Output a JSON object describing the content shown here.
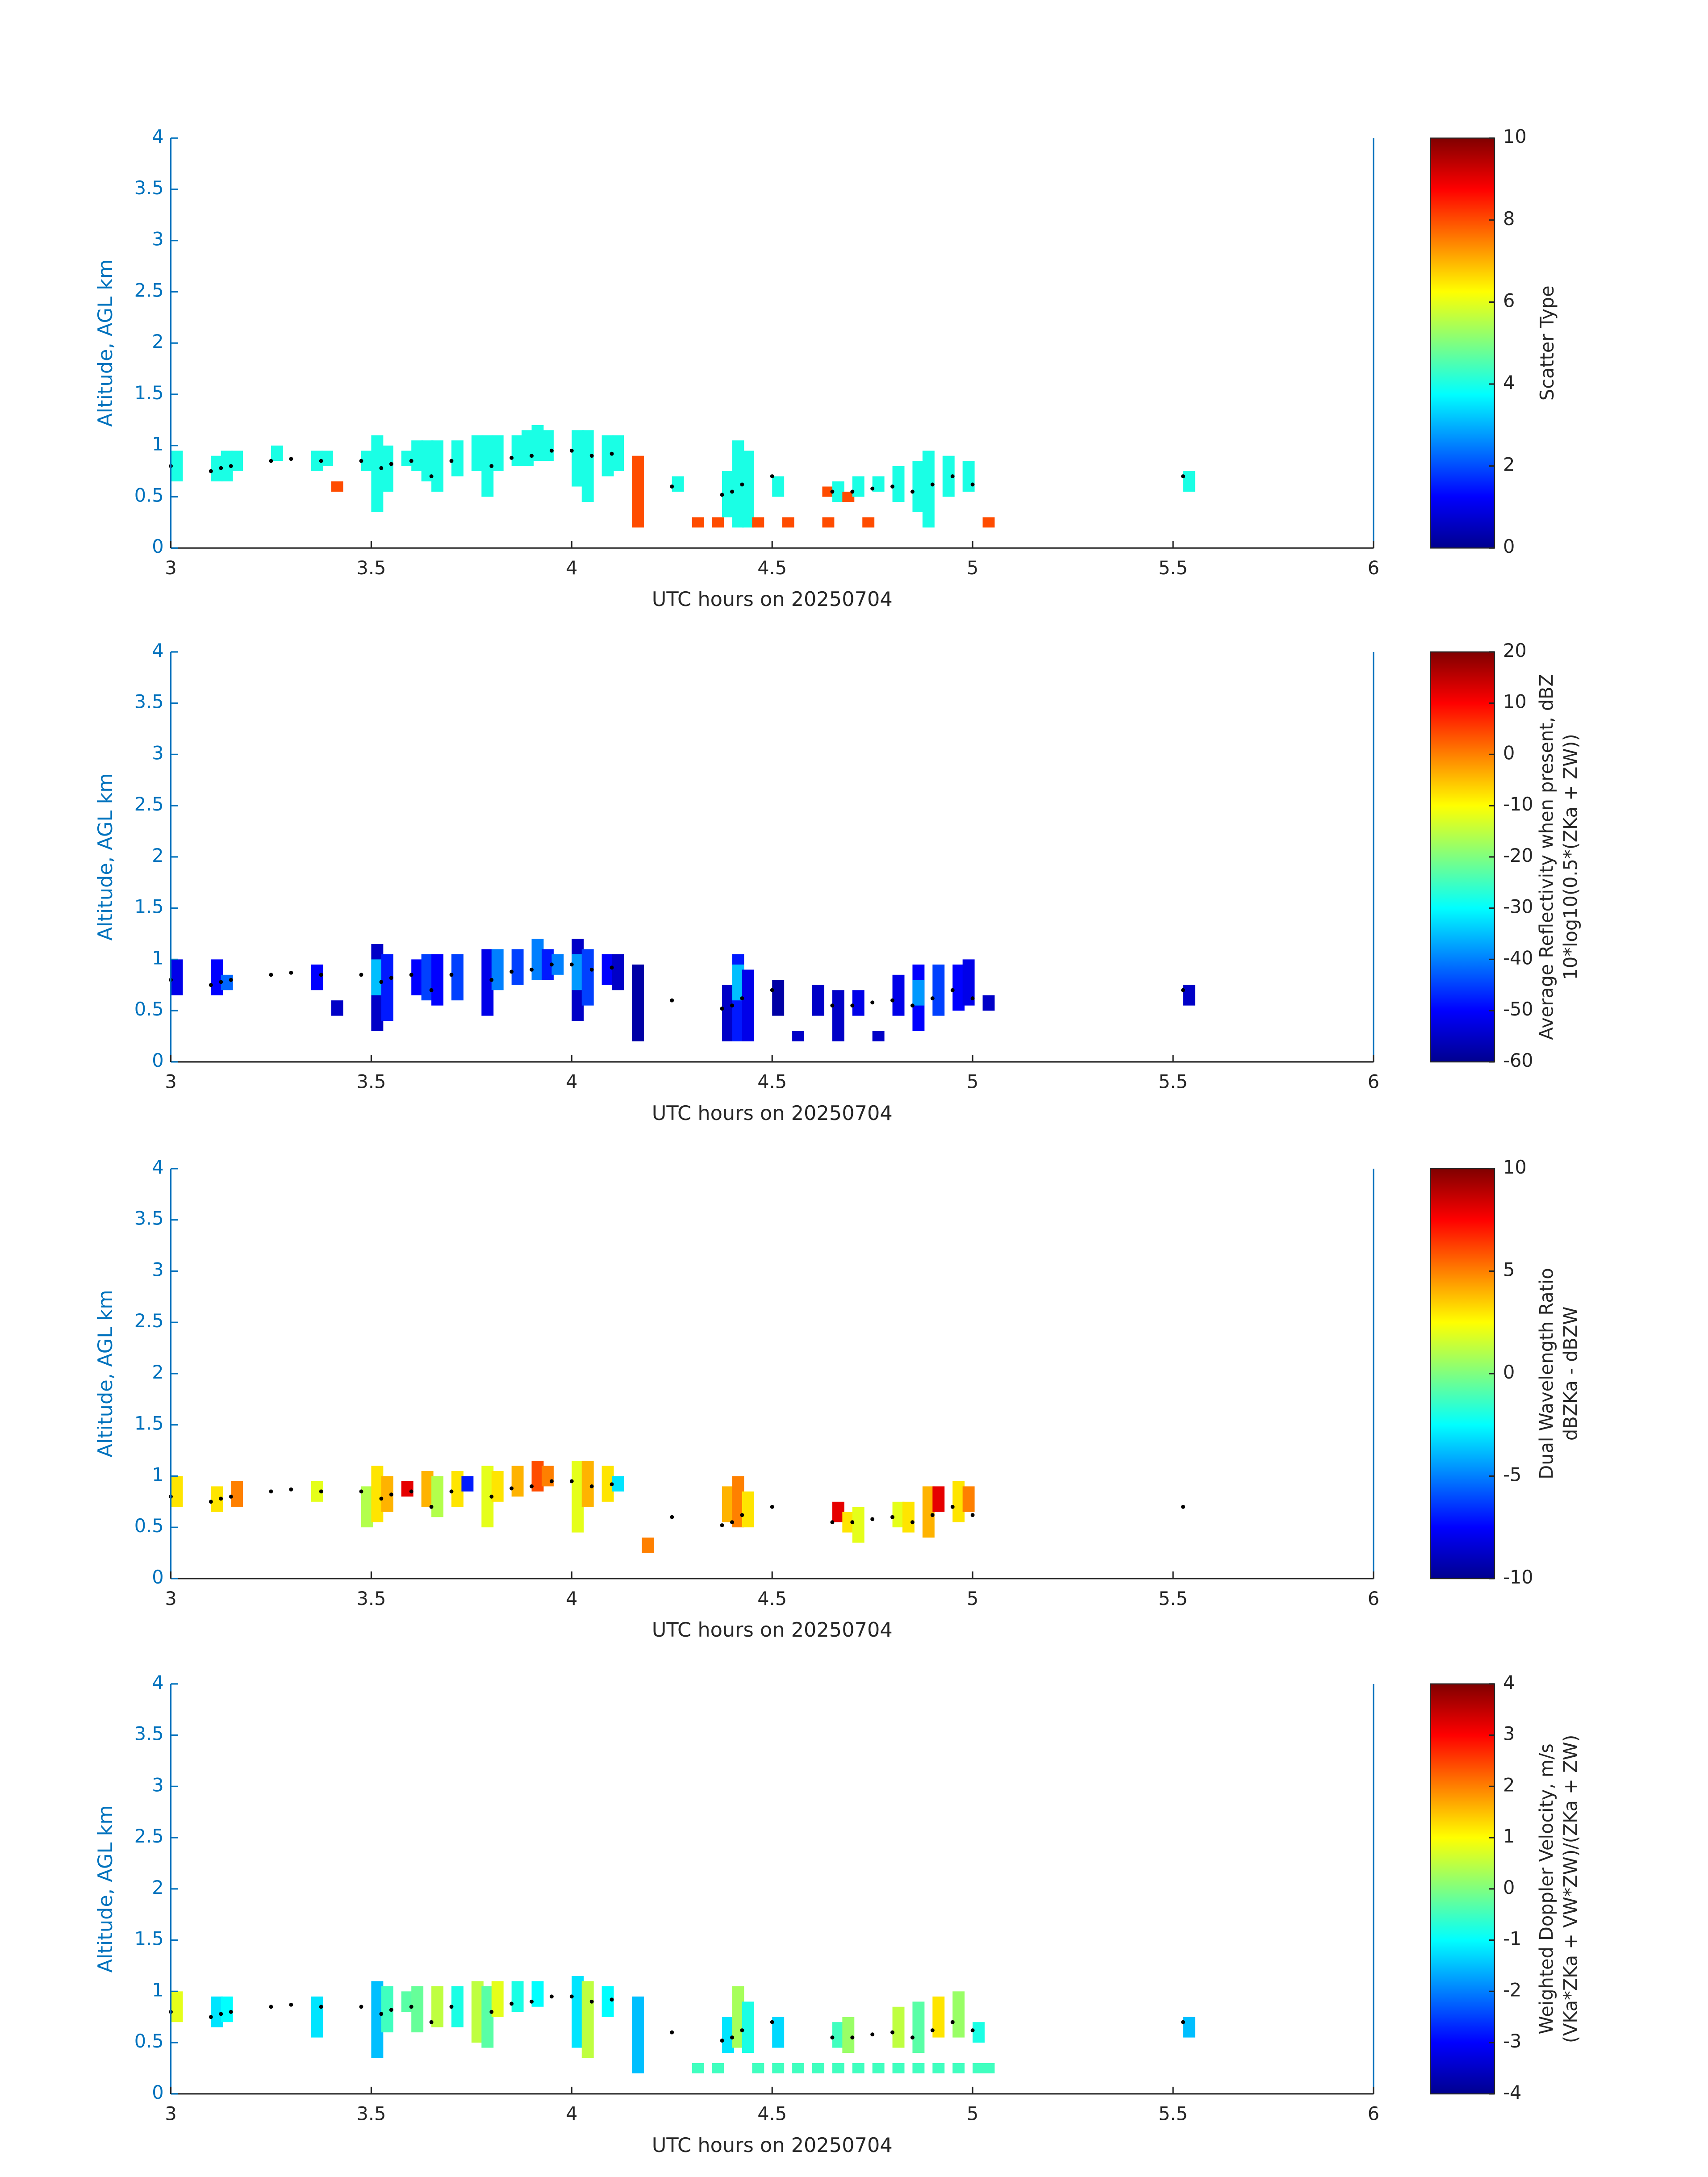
{
  "chart_data": [
    {
      "type": "heatmap",
      "xlabel": "UTC hours on 20250704",
      "ylabel": "Altitude, AGL km",
      "xlim": [
        3,
        6
      ],
      "ylim": [
        0,
        4
      ],
      "xticks": [
        3,
        3.5,
        4,
        4.5,
        5,
        5.5,
        6
      ],
      "yticks": [
        0,
        0.5,
        1,
        1.5,
        2,
        2.5,
        3,
        3.5,
        4
      ],
      "cells": {
        "x": [
          3.0,
          3.1,
          3.125,
          3.15,
          3.25,
          3.35,
          3.375,
          3.4,
          3.475,
          3.5,
          3.525,
          3.575,
          3.6,
          3.625,
          3.65,
          3.7,
          3.75,
          3.775,
          3.8,
          3.85,
          3.875,
          3.9,
          3.925,
          4.0,
          4.025,
          4.075,
          4.1,
          4.15,
          4.25,
          4.3,
          4.35,
          4.375,
          4.4,
          4.425,
          4.45,
          4.5,
          4.525,
          4.625,
          4.625,
          4.65,
          4.675,
          4.7,
          4.725,
          4.75,
          4.8,
          4.85,
          4.875,
          4.925,
          4.975,
          5.025,
          5.525
        ],
        "y_bottom": [
          0.65,
          0.65,
          0.65,
          0.75,
          0.85,
          0.75,
          0.8,
          0.55,
          0.75,
          0.35,
          0.55,
          0.8,
          0.75,
          0.65,
          0.55,
          0.7,
          0.75,
          0.5,
          0.75,
          0.8,
          0.8,
          0.85,
          0.85,
          0.6,
          0.45,
          0.7,
          0.75,
          0.2,
          0.55,
          0.2,
          0.2,
          0.3,
          0.2,
          0.2,
          0.2,
          0.5,
          0.2,
          0.5,
          0.2,
          0.45,
          0.45,
          0.5,
          0.2,
          0.55,
          0.45,
          0.35,
          0.2,
          0.5,
          0.55,
          0.2,
          0.55
        ],
        "y_top": [
          0.95,
          0.9,
          0.95,
          0.95,
          1.0,
          0.95,
          0.95,
          0.65,
          0.95,
          1.1,
          1.0,
          0.95,
          1.05,
          1.05,
          1.05,
          1.05,
          1.1,
          1.1,
          1.1,
          1.1,
          1.15,
          1.2,
          1.15,
          1.15,
          1.15,
          1.1,
          1.1,
          0.9,
          0.7,
          0.3,
          0.3,
          0.75,
          1.05,
          0.95,
          0.3,
          0.7,
          0.3,
          0.6,
          0.3,
          0.65,
          0.55,
          0.7,
          0.3,
          0.7,
          0.8,
          0.85,
          0.95,
          0.9,
          0.85,
          0.3,
          0.75
        ],
        "values": [
          4,
          4,
          4,
          4,
          4,
          4,
          4,
          8,
          4,
          4,
          4,
          4,
          4,
          4,
          4,
          4,
          4,
          4,
          4,
          4,
          4,
          4,
          4,
          4,
          4,
          4,
          4,
          8,
          4,
          8,
          8,
          4,
          4,
          4,
          8,
          4,
          8,
          8,
          8,
          4,
          8,
          4,
          8,
          4,
          4,
          4,
          4,
          4,
          4,
          8,
          4
        ]
      },
      "markers": {
        "x": [
          3.0,
          3.1,
          3.125,
          3.15,
          3.25,
          3.3,
          3.375,
          3.475,
          3.525,
          3.55,
          3.6,
          3.65,
          3.7,
          3.8,
          3.85,
          3.9,
          3.95,
          4.0,
          4.05,
          4.1,
          4.25,
          4.375,
          4.4,
          4.425,
          4.5,
          4.65,
          4.7,
          4.75,
          4.8,
          4.85,
          4.9,
          4.95,
          5.0,
          5.525
        ],
        "y": [
          0.8,
          0.75,
          0.78,
          0.8,
          0.85,
          0.87,
          0.85,
          0.85,
          0.78,
          0.82,
          0.85,
          0.7,
          0.85,
          0.8,
          0.88,
          0.9,
          0.95,
          0.95,
          0.9,
          0.92,
          0.6,
          0.52,
          0.55,
          0.62,
          0.7,
          0.55,
          0.55,
          0.58,
          0.6,
          0.55,
          0.62,
          0.7,
          0.62,
          0.7
        ],
        "color": "#000000"
      },
      "colorbar": {
        "label": [
          "Scatter Type"
        ],
        "clim": [
          0,
          10
        ],
        "ticks": [
          0,
          2,
          4,
          6,
          8,
          10
        ],
        "colormap": "jet"
      }
    },
    {
      "type": "heatmap",
      "xlabel": "UTC hours on 20250704",
      "ylabel": "Altitude, AGL km",
      "xlim": [
        3,
        6
      ],
      "ylim": [
        0,
        4
      ],
      "xticks": [
        3,
        3.5,
        4,
        4.5,
        5,
        5.5,
        6
      ],
      "yticks": [
        0,
        0.5,
        1,
        1.5,
        2,
        2.5,
        3,
        3.5,
        4
      ],
      "cells": {
        "x": [
          3.0,
          3.1,
          3.125,
          3.35,
          3.4,
          3.5,
          3.5,
          3.525,
          3.6,
          3.625,
          3.65,
          3.7,
          3.775,
          3.8,
          3.85,
          3.9,
          3.925,
          3.95,
          4.0,
          4.0,
          4.025,
          4.075,
          4.1,
          4.15,
          4.375,
          4.4,
          4.4,
          4.425,
          4.5,
          4.55,
          4.6,
          4.65,
          4.7,
          4.75,
          4.8,
          4.85,
          4.85,
          4.9,
          4.95,
          4.975,
          5.025,
          5.525
        ],
        "y_bottom": [
          0.65,
          0.65,
          0.7,
          0.7,
          0.45,
          0.3,
          0.65,
          0.4,
          0.65,
          0.6,
          0.55,
          0.6,
          0.45,
          0.7,
          0.75,
          0.8,
          0.8,
          0.85,
          0.4,
          0.7,
          0.55,
          0.75,
          0.7,
          0.2,
          0.2,
          0.2,
          0.6,
          0.2,
          0.45,
          0.2,
          0.45,
          0.2,
          0.45,
          0.2,
          0.45,
          0.3,
          0.55,
          0.45,
          0.5,
          0.55,
          0.5,
          0.55
        ],
        "y_top": [
          1.0,
          1.0,
          0.85,
          0.95,
          0.6,
          1.15,
          1.0,
          1.05,
          1.0,
          1.05,
          1.05,
          1.05,
          1.1,
          1.1,
          1.1,
          1.2,
          1.1,
          1.05,
          1.2,
          1.05,
          1.1,
          1.05,
          1.05,
          0.95,
          0.75,
          1.05,
          0.95,
          0.9,
          0.8,
          0.3,
          0.75,
          0.7,
          0.7,
          0.3,
          0.85,
          0.95,
          0.8,
          0.95,
          0.95,
          1.0,
          0.65,
          0.75
        ],
        "values": [
          -52,
          -50,
          -42,
          -50,
          -55,
          -55,
          -35,
          -48,
          -50,
          -45,
          -50,
          -45,
          -52,
          -40,
          -45,
          -40,
          -48,
          -40,
          -55,
          -38,
          -45,
          -50,
          -55,
          -58,
          -55,
          -48,
          -35,
          -52,
          -58,
          -55,
          -55,
          -55,
          -52,
          -55,
          -52,
          -50,
          -38,
          -45,
          -50,
          -52,
          -55,
          -55
        ]
      },
      "markers": {
        "x": [
          3.0,
          3.1,
          3.125,
          3.15,
          3.25,
          3.3,
          3.375,
          3.475,
          3.525,
          3.55,
          3.6,
          3.65,
          3.7,
          3.8,
          3.85,
          3.9,
          3.95,
          4.0,
          4.05,
          4.1,
          4.25,
          4.375,
          4.4,
          4.425,
          4.5,
          4.65,
          4.7,
          4.75,
          4.8,
          4.85,
          4.9,
          4.95,
          5.0,
          5.525
        ],
        "y": [
          0.8,
          0.75,
          0.78,
          0.8,
          0.85,
          0.87,
          0.85,
          0.85,
          0.78,
          0.82,
          0.85,
          0.7,
          0.85,
          0.8,
          0.88,
          0.9,
          0.95,
          0.95,
          0.9,
          0.92,
          0.6,
          0.52,
          0.55,
          0.62,
          0.7,
          0.55,
          0.55,
          0.58,
          0.6,
          0.55,
          0.62,
          0.7,
          0.62,
          0.7
        ],
        "color": "#000000"
      },
      "colorbar": {
        "label": [
          "Average Reflectivity when present, dBZ",
          "10*log10(0.5*(ZKa + ZW))"
        ],
        "clim": [
          -60,
          20
        ],
        "ticks": [
          -60,
          -50,
          -40,
          -30,
          -20,
          -10,
          0,
          10,
          20
        ],
        "colormap": "jet"
      }
    },
    {
      "type": "heatmap",
      "xlabel": "UTC hours on 20250704",
      "ylabel": "Altitude, AGL km",
      "xlim": [
        3,
        6
      ],
      "ylim": [
        0,
        4
      ],
      "xticks": [
        3,
        3.5,
        4,
        4.5,
        5,
        5.5,
        6
      ],
      "yticks": [
        0,
        0.5,
        1,
        1.5,
        2,
        2.5,
        3,
        3.5,
        4
      ],
      "cells": {
        "x": [
          3.0,
          3.1,
          3.15,
          3.35,
          3.475,
          3.5,
          3.525,
          3.575,
          3.625,
          3.65,
          3.7,
          3.725,
          3.775,
          3.8,
          3.85,
          3.9,
          3.925,
          4.0,
          4.025,
          4.075,
          4.1,
          4.175,
          4.375,
          4.4,
          4.425,
          4.65,
          4.675,
          4.7,
          4.8,
          4.825,
          4.875,
          4.9,
          4.95,
          4.975
        ],
        "y_bottom": [
          0.7,
          0.65,
          0.7,
          0.75,
          0.5,
          0.55,
          0.65,
          0.8,
          0.7,
          0.6,
          0.7,
          0.85,
          0.5,
          0.75,
          0.8,
          0.85,
          0.9,
          0.45,
          0.7,
          0.75,
          0.85,
          0.25,
          0.55,
          0.5,
          0.5,
          0.55,
          0.45,
          0.35,
          0.5,
          0.45,
          0.4,
          0.65,
          0.55,
          0.65
        ],
        "y_top": [
          1.0,
          0.9,
          0.95,
          0.95,
          0.9,
          1.1,
          1.0,
          0.95,
          1.05,
          1.0,
          1.05,
          1.0,
          1.1,
          1.05,
          1.1,
          1.15,
          1.1,
          1.15,
          1.15,
          1.1,
          1.0,
          0.4,
          0.9,
          1.0,
          0.85,
          0.75,
          0.65,
          0.7,
          0.75,
          0.75,
          0.9,
          0.9,
          0.95,
          0.9
        ],
        "values": [
          3,
          3,
          5,
          2,
          1,
          3,
          4,
          8,
          4,
          1,
          3,
          -7,
          2,
          3,
          4,
          6,
          5,
          2,
          4,
          3,
          -3,
          5,
          4,
          5,
          3,
          8,
          3,
          2,
          2,
          3,
          4,
          8,
          3,
          5
        ]
      },
      "markers": {
        "x": [
          3.0,
          3.1,
          3.125,
          3.15,
          3.25,
          3.3,
          3.375,
          3.475,
          3.525,
          3.55,
          3.6,
          3.65,
          3.7,
          3.8,
          3.85,
          3.9,
          3.95,
          4.0,
          4.05,
          4.1,
          4.25,
          4.375,
          4.4,
          4.425,
          4.5,
          4.65,
          4.7,
          4.75,
          4.8,
          4.85,
          4.9,
          4.95,
          5.0,
          5.525
        ],
        "y": [
          0.8,
          0.75,
          0.78,
          0.8,
          0.85,
          0.87,
          0.85,
          0.85,
          0.78,
          0.82,
          0.85,
          0.7,
          0.85,
          0.8,
          0.88,
          0.9,
          0.95,
          0.95,
          0.9,
          0.92,
          0.6,
          0.52,
          0.55,
          0.62,
          0.7,
          0.55,
          0.55,
          0.58,
          0.6,
          0.55,
          0.62,
          0.7,
          0.62,
          0.7
        ],
        "color": "#000000"
      },
      "colorbar": {
        "label": [
          "Dual Wavelength Ratio",
          "dBZKa - dBZW"
        ],
        "clim": [
          -10,
          10
        ],
        "ticks": [
          -10,
          -5,
          0,
          5,
          10
        ],
        "colormap": "jet"
      }
    },
    {
      "type": "heatmap",
      "xlabel": "UTC hours on 20250704",
      "ylabel": "Altitude, AGL km",
      "xlim": [
        3,
        6
      ],
      "ylim": [
        0,
        4
      ],
      "xticks": [
        3,
        3.5,
        4,
        4.5,
        5,
        5.5,
        6
      ],
      "yticks": [
        0,
        0.5,
        1,
        1.5,
        2,
        2.5,
        3,
        3.5,
        4
      ],
      "cells": {
        "x": [
          3.0,
          3.1,
          3.125,
          3.35,
          3.5,
          3.525,
          3.575,
          3.6,
          3.65,
          3.7,
          3.75,
          3.775,
          3.8,
          3.85,
          3.9,
          4.0,
          4.025,
          4.075,
          4.15,
          4.3,
          4.35,
          4.45,
          4.5,
          4.55,
          4.6,
          4.65,
          4.7,
          4.75,
          4.8,
          4.85,
          4.9,
          4.95,
          5.0,
          5.025,
          4.375,
          4.4,
          4.425,
          4.5,
          4.65,
          4.675,
          4.8,
          4.85,
          4.9,
          4.95,
          5.0,
          5.525
        ],
        "y_bottom": [
          0.7,
          0.65,
          0.7,
          0.55,
          0.35,
          0.6,
          0.8,
          0.6,
          0.65,
          0.65,
          0.5,
          0.45,
          0.75,
          0.8,
          0.85,
          0.45,
          0.35,
          0.75,
          0.2,
          0.2,
          0.2,
          0.2,
          0.2,
          0.2,
          0.2,
          0.2,
          0.2,
          0.2,
          0.2,
          0.2,
          0.2,
          0.2,
          0.2,
          0.2,
          0.4,
          0.45,
          0.4,
          0.45,
          0.45,
          0.4,
          0.45,
          0.4,
          0.55,
          0.55,
          0.5,
          0.55
        ],
        "y_top": [
          1.0,
          0.95,
          0.95,
          0.95,
          1.1,
          1.05,
          1.0,
          1.05,
          1.05,
          1.05,
          1.1,
          1.05,
          1.1,
          1.1,
          1.1,
          1.15,
          1.1,
          1.05,
          0.95,
          0.3,
          0.3,
          0.3,
          0.3,
          0.3,
          0.3,
          0.3,
          0.3,
          0.3,
          0.3,
          0.3,
          0.3,
          0.3,
          0.3,
          0.3,
          0.75,
          1.05,
          0.9,
          0.75,
          0.7,
          0.75,
          0.85,
          0.9,
          0.95,
          1.0,
          0.7,
          0.75
        ],
        "values": [
          0.8,
          -1.2,
          -1,
          -1.2,
          -1.5,
          -0.5,
          -0.3,
          -0.2,
          0.5,
          -0.8,
          0.5,
          -0.3,
          0.8,
          -0.8,
          -1,
          -1.2,
          0.5,
          -1,
          -1.5,
          -0.5,
          -0.5,
          -0.5,
          -0.5,
          -0.5,
          -0.5,
          -0.5,
          -0.5,
          -0.5,
          -0.5,
          -0.5,
          -0.5,
          -0.5,
          -0.5,
          -0.5,
          -1.2,
          0.3,
          -0.8,
          -1.3,
          -0.5,
          0.2,
          0.5,
          -0.3,
          1.2,
          0.2,
          -0.8,
          -1.5
        ]
      },
      "markers": {
        "x": [
          3.0,
          3.1,
          3.125,
          3.15,
          3.25,
          3.3,
          3.375,
          3.475,
          3.525,
          3.55,
          3.6,
          3.65,
          3.7,
          3.8,
          3.85,
          3.9,
          3.95,
          4.0,
          4.05,
          4.1,
          4.25,
          4.375,
          4.4,
          4.425,
          4.5,
          4.65,
          4.7,
          4.75,
          4.8,
          4.85,
          4.9,
          4.95,
          5.0,
          5.525
        ],
        "y": [
          0.8,
          0.75,
          0.78,
          0.8,
          0.85,
          0.87,
          0.85,
          0.85,
          0.78,
          0.82,
          0.85,
          0.7,
          0.85,
          0.8,
          0.88,
          0.9,
          0.95,
          0.95,
          0.9,
          0.92,
          0.6,
          0.52,
          0.55,
          0.62,
          0.7,
          0.55,
          0.55,
          0.58,
          0.6,
          0.55,
          0.62,
          0.7,
          0.62,
          0.7
        ],
        "color": "#000000"
      },
      "colorbar": {
        "label": [
          "Weighted Doppler Velocity, m/s",
          "(VKa*ZKa + VW*ZW)/(ZKa + ZW)"
        ],
        "clim": [
          -4,
          4
        ],
        "ticks": [
          -4,
          -3,
          -2,
          -1,
          0,
          1,
          2,
          3,
          4
        ],
        "colormap": "jet"
      }
    }
  ]
}
